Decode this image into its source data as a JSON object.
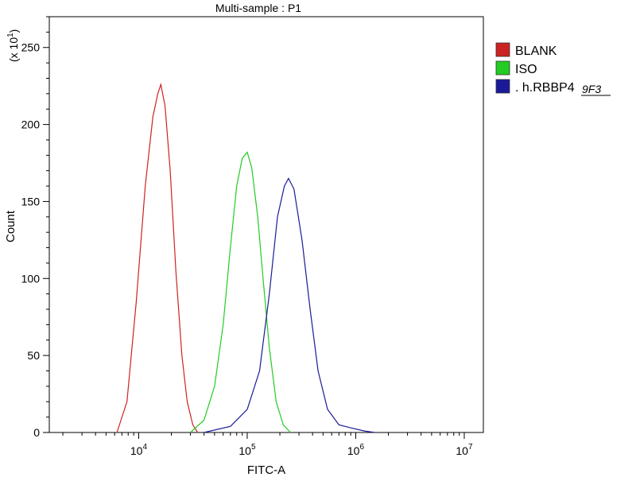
{
  "chart_data": {
    "type": "line",
    "title": "Multi-sample : P1",
    "xlabel": "FITC-A",
    "ylabel": "Count",
    "y_multiplier_label": "(x 10",
    "y_multiplier_exp": "1",
    "y_multiplier_close": ")",
    "x_scale": "log",
    "xlim": [
      1500,
      15000000
    ],
    "ylim": [
      0,
      270
    ],
    "x_ticks": [
      {
        "value": 10000,
        "base": "10",
        "exp": "4"
      },
      {
        "value": 100000,
        "base": "10",
        "exp": "5"
      },
      {
        "value": 1000000,
        "base": "10",
        "exp": "6"
      },
      {
        "value": 10000000,
        "base": "10",
        "exp": "7"
      }
    ],
    "y_ticks": [
      0,
      50,
      100,
      150,
      200,
      250
    ],
    "grid": false,
    "legend_position": "right",
    "legend_annotation": "9F3",
    "series": [
      {
        "name": "BLANK",
        "color": "#cc2222",
        "x": [
          6300,
          7800,
          9500,
          11500,
          13500,
          15000,
          16000,
          17500,
          19500,
          22000,
          25000,
          28000,
          31500,
          35000
        ],
        "y": [
          0,
          20,
          85,
          160,
          205,
          220,
          226,
          212,
          170,
          105,
          50,
          20,
          5,
          0
        ]
      },
      {
        "name": "ISO",
        "color": "#22cc22",
        "x": [
          30000,
          40000,
          50000,
          60000,
          70000,
          80000,
          90000,
          100000,
          110000,
          125000,
          140000,
          160000,
          185000,
          215000,
          250000
        ],
        "y": [
          0,
          8,
          30,
          70,
          120,
          160,
          178,
          182,
          172,
          140,
          100,
          55,
          20,
          5,
          0
        ]
      },
      {
        "name": ". h.RBBP4",
        "color": "#1a1a99",
        "x": [
          40000,
          70000,
          100000,
          130000,
          160000,
          190000,
          220000,
          240000,
          270000,
          320000,
          380000,
          450000,
          550000,
          700000,
          900000,
          1200000,
          1500000
        ],
        "y": [
          0,
          4,
          15,
          40,
          90,
          140,
          160,
          165,
          158,
          125,
          80,
          40,
          15,
          5,
          3,
          1,
          0
        ]
      }
    ]
  }
}
